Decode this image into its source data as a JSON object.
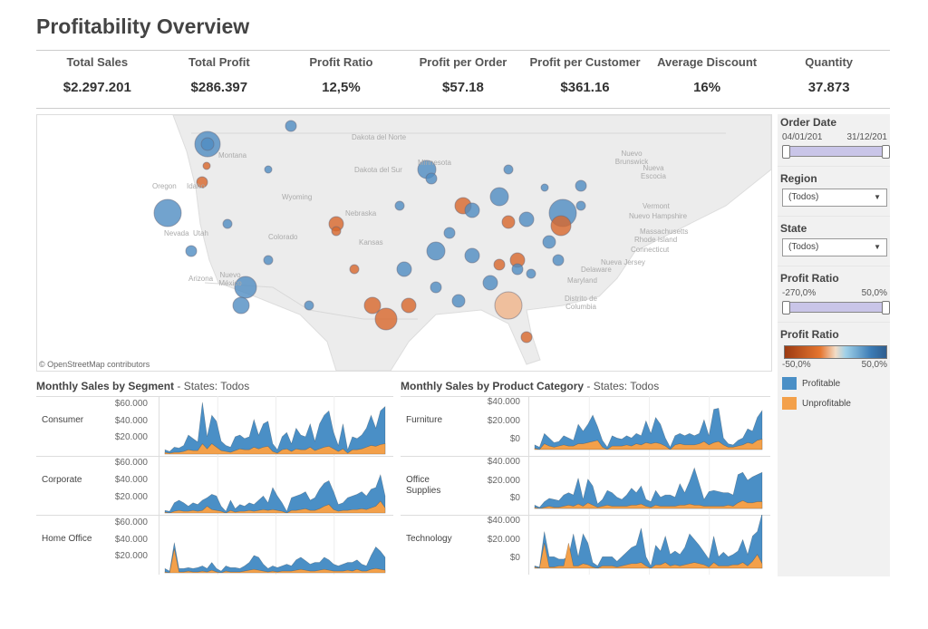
{
  "title": "Profitability Overview",
  "kpis": [
    {
      "label": "Total Sales",
      "value": "$2.297.201"
    },
    {
      "label": "Total Profit",
      "value": "$286.397"
    },
    {
      "label": "Profit Ratio",
      "value": "12,5%"
    },
    {
      "label": "Profit per Order",
      "value": "$57.18"
    },
    {
      "label": "Profit per Customer",
      "value": "$361.16"
    },
    {
      "label": "Average Discount",
      "value": "16%"
    },
    {
      "label": "Quantity",
      "value": "37.873"
    }
  ],
  "map": {
    "attribution": "© OpenStreetMap contributors",
    "state_labels": [
      "Dakota del Norte",
      "Dakota del Sur",
      "Minnesota",
      "Montana",
      "Oregon",
      "Idaho",
      "Wyoming",
      "Nebraska",
      "Nevada",
      "Utah",
      "Colorado",
      "Kansas",
      "Arizona",
      "Nuevo México",
      "Vermont",
      "Nuevo Hampshire",
      "Massachusetts",
      "Rhode Island",
      "Connecticut",
      "Nueva Jersey",
      "Delaware",
      "Maryland",
      "Distrito de Columbia",
      "Nuevo Brunswick",
      "Nueva Escocia"
    ],
    "colors": {
      "profitable": "#3f7fb5",
      "unprofitable": "#e0692a"
    }
  },
  "filters": {
    "order_date": {
      "label": "Order Date",
      "start": "04/01/201",
      "end": "31/12/201"
    },
    "region": {
      "label": "Region",
      "value": "(Todos)"
    },
    "state": {
      "label": "State",
      "value": "(Todos)"
    },
    "profit_ratio_filter": {
      "label": "Profit Ratio",
      "min": "-270,0%",
      "max": "50,0%"
    },
    "profit_ratio_legend": {
      "label": "Profit Ratio",
      "min": "-50,0%",
      "max": "50,0%"
    },
    "legend": [
      {
        "label": "Profitable",
        "color": "#4a8fc6"
      },
      {
        "label": "Unprofitable",
        "color": "#f3a04a"
      }
    ]
  },
  "chart_data": [
    {
      "type": "area",
      "title": "Monthly Sales by Segment",
      "subtitle": "- States: Todos",
      "ylim": [
        0,
        65000
      ],
      "ticks": [
        "$60.000",
        "$40.000",
        "$20.000"
      ],
      "series_names": [
        "Profitable",
        "Unprofitable"
      ],
      "panels": [
        {
          "label": "Consumer",
          "total": [
            5,
            3,
            8,
            7,
            10,
            22,
            18,
            14,
            60,
            20,
            45,
            38,
            15,
            10,
            8,
            20,
            22,
            18,
            20,
            40,
            22,
            35,
            38,
            12,
            5,
            20,
            25,
            12,
            30,
            22,
            20,
            35,
            15,
            35,
            45,
            50,
            25,
            10,
            35,
            5,
            20,
            18,
            22,
            30,
            45,
            30,
            50,
            55
          ],
          "unprofitable": [
            2,
            1,
            2,
            2,
            3,
            5,
            4,
            4,
            12,
            6,
            12,
            8,
            4,
            3,
            2,
            4,
            6,
            5,
            5,
            8,
            6,
            8,
            9,
            3,
            1,
            5,
            6,
            3,
            6,
            5,
            5,
            8,
            4,
            6,
            8,
            9,
            6,
            3,
            6,
            1,
            5,
            5,
            6,
            8,
            10,
            9,
            11,
            12
          ]
        },
        {
          "label": "Corporate",
          "total": [
            3,
            2,
            12,
            15,
            12,
            8,
            12,
            10,
            15,
            18,
            22,
            20,
            8,
            2,
            15,
            5,
            10,
            8,
            12,
            10,
            15,
            20,
            12,
            30,
            20,
            12,
            2,
            18,
            20,
            22,
            25,
            15,
            18,
            28,
            35,
            38,
            25,
            10,
            12,
            18,
            20,
            22,
            25,
            20,
            28,
            30,
            45,
            20
          ],
          "unprofitable": [
            1,
            0,
            2,
            3,
            2,
            2,
            3,
            2,
            3,
            8,
            4,
            3,
            2,
            0,
            3,
            1,
            2,
            2,
            3,
            2,
            3,
            4,
            3,
            4,
            3,
            2,
            0,
            3,
            3,
            4,
            5,
            3,
            3,
            5,
            8,
            10,
            4,
            2,
            3,
            3,
            4,
            4,
            5,
            4,
            6,
            8,
            14,
            6
          ]
        },
        {
          "label": "Home Office",
          "total": [
            5,
            2,
            35,
            5,
            5,
            6,
            5,
            6,
            8,
            5,
            12,
            5,
            2,
            8,
            6,
            6,
            5,
            8,
            12,
            20,
            18,
            10,
            5,
            8,
            6,
            8,
            10,
            8,
            15,
            18,
            14,
            10,
            12,
            12,
            18,
            15,
            10,
            8,
            10,
            12,
            12,
            15,
            10,
            8,
            20,
            30,
            25,
            18
          ],
          "unprofitable": [
            1,
            0,
            28,
            1,
            1,
            2,
            1,
            1,
            2,
            1,
            3,
            1,
            0,
            2,
            1,
            1,
            1,
            2,
            3,
            4,
            3,
            2,
            1,
            2,
            1,
            2,
            2,
            2,
            3,
            4,
            3,
            2,
            2,
            3,
            4,
            3,
            2,
            2,
            2,
            3,
            2,
            4,
            2,
            2,
            4,
            5,
            4,
            3
          ]
        }
      ]
    },
    {
      "type": "area",
      "title": "Monthly Sales by Product Category",
      "subtitle": "- States: Todos",
      "ylim": [
        -4000,
        45000
      ],
      "ticks": [
        "$40.000",
        "$20.000",
        "$0"
      ],
      "series_names": [
        "Profitable",
        "Unprofitable"
      ],
      "panels": [
        {
          "label": "Furniture",
          "total": [
            4,
            2,
            14,
            10,
            6,
            7,
            12,
            10,
            8,
            22,
            16,
            22,
            30,
            20,
            8,
            2,
            12,
            10,
            9,
            12,
            10,
            14,
            12,
            25,
            14,
            28,
            22,
            10,
            2,
            12,
            14,
            12,
            14,
            12,
            14,
            26,
            12,
            35,
            36,
            10,
            5,
            4,
            8,
            10,
            18,
            16,
            28,
            34
          ],
          "unprofitable": [
            1,
            0,
            5,
            3,
            2,
            3,
            4,
            3,
            3,
            5,
            5,
            6,
            7,
            8,
            2,
            0,
            3,
            3,
            3,
            4,
            3,
            5,
            4,
            6,
            5,
            6,
            5,
            3,
            0,
            4,
            5,
            4,
            4,
            4,
            5,
            7,
            4,
            6,
            7,
            4,
            2,
            2,
            3,
            4,
            6,
            5,
            8,
            9
          ]
        },
        {
          "label": "Office Supplies",
          "total": [
            3,
            1,
            6,
            9,
            8,
            7,
            12,
            14,
            12,
            27,
            8,
            26,
            20,
            4,
            8,
            16,
            14,
            10,
            8,
            12,
            18,
            14,
            20,
            8,
            6,
            16,
            10,
            12,
            12,
            10,
            22,
            14,
            24,
            36,
            22,
            8,
            15,
            16,
            15,
            14,
            14,
            12,
            30,
            32,
            25,
            28,
            30,
            32
          ],
          "unprofitable": [
            1,
            0,
            1,
            2,
            1,
            1,
            2,
            3,
            2,
            4,
            2,
            5,
            3,
            1,
            2,
            3,
            2,
            2,
            2,
            2,
            3,
            3,
            4,
            2,
            1,
            3,
            2,
            2,
            2,
            2,
            3,
            3,
            4,
            3,
            3,
            2,
            2,
            2,
            2,
            2,
            3,
            2,
            5,
            7,
            5,
            5,
            6,
            6
          ]
        },
        {
          "label": "Technology",
          "total": [
            2,
            1,
            32,
            10,
            10,
            8,
            8,
            10,
            30,
            10,
            30,
            22,
            5,
            2,
            10,
            10,
            10,
            6,
            10,
            14,
            18,
            20,
            35,
            10,
            2,
            20,
            15,
            28,
            12,
            15,
            12,
            18,
            30,
            25,
            20,
            14,
            8,
            28,
            10,
            14,
            10,
            12,
            15,
            25,
            12,
            28,
            32,
            48
          ],
          "unprofitable": [
            1,
            0,
            22,
            1,
            1,
            2,
            2,
            22,
            2,
            2,
            4,
            3,
            1,
            0,
            2,
            2,
            2,
            1,
            2,
            3,
            4,
            4,
            5,
            2,
            0,
            3,
            3,
            5,
            2,
            3,
            2,
            3,
            4,
            5,
            4,
            3,
            1,
            5,
            2,
            2,
            2,
            3,
            3,
            5,
            2,
            6,
            12,
            4
          ]
        }
      ]
    }
  ]
}
